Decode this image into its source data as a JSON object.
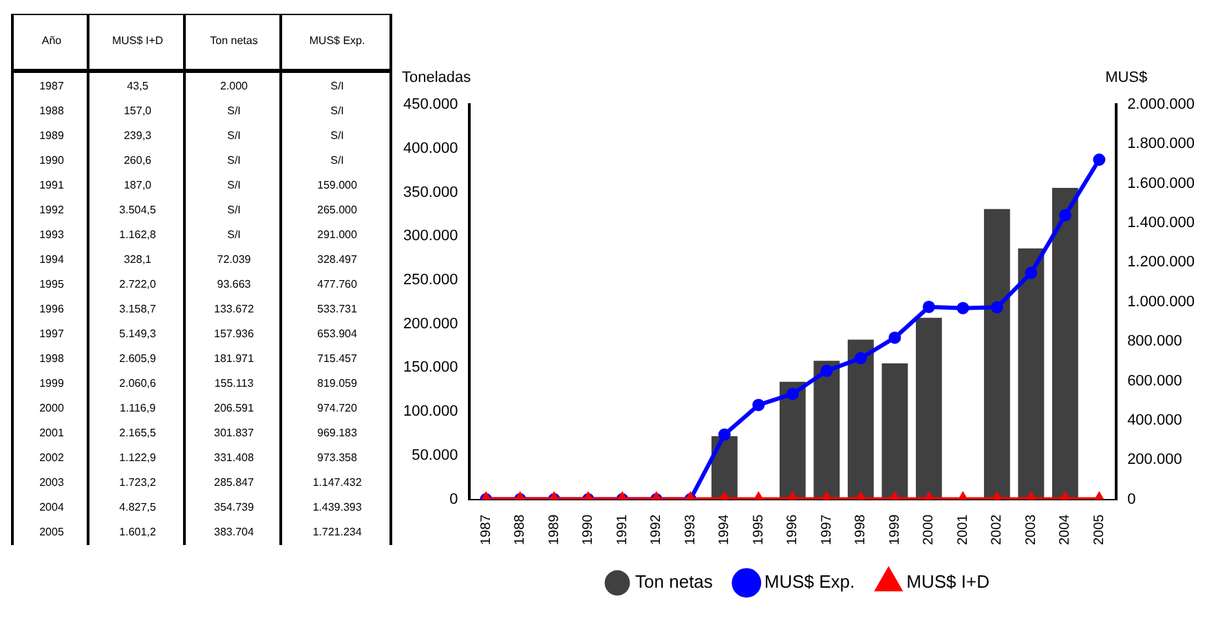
{
  "chart_data": [
    {
      "type": "heatmap",
      "ylabel": "Año",
      "categories": [
        "MUS$ I+D",
        "Ton netas",
        "MUS$ Exp."
      ],
      "y_categories": [
        "1987",
        "1988",
        "1989",
        "1990",
        "1991",
        "1992",
        "1993",
        "1994",
        "1995",
        "1996",
        "1997",
        "1998",
        "1999",
        "2000",
        "2001",
        "2002",
        "2003",
        "2004",
        "2005"
      ],
      "cells": [
        [
          null,
          null,
          null
        ],
        [
          null,
          null,
          null
        ],
        [
          null,
          null,
          null
        ],
        [
          null,
          null,
          null
        ],
        [
          null,
          null,
          null
        ],
        [
          null,
          null,
          null
        ],
        [
          null,
          null,
          null
        ],
        [
          null,
          null,
          null
        ],
        [
          null,
          null,
          null
        ],
        [
          null,
          null,
          null
        ],
        [
          null,
          null,
          null
        ],
        [
          null,
          null,
          null
        ],
        [
          null,
          null,
          null
        ],
        [
          null,
          null,
          null
        ],
        [
          null,
          null,
          null
        ],
        [
          null,
          null,
          null
        ],
        [
          null,
          null,
          null
        ],
        [
          null,
          null,
          null
        ],
        [
          null,
          null,
          null
        ]
      ],
      "cell_labels": [
        [
          "43,5",
          "2.000",
          "S/I"
        ],
        [
          "157,0",
          "S/I",
          "S/I"
        ],
        [
          "239,3",
          "S/I",
          "S/I"
        ],
        [
          "260,6",
          "S/I",
          "S/I"
        ],
        [
          "187,0",
          "S/I",
          "159.000"
        ],
        [
          "3.504,5",
          "S/I",
          "265.000"
        ],
        [
          "1.162,8",
          "S/I",
          "291.000"
        ],
        [
          "328,1",
          "72.039",
          "328.497"
        ],
        [
          "2.722,0",
          "93.663",
          "477.760"
        ],
        [
          "3.158,7",
          "133.672",
          "533.731"
        ],
        [
          "5.149,3",
          "157.936",
          "653.904"
        ],
        [
          "2.605,9",
          "181.971",
          "715.457"
        ],
        [
          "2.060,6",
          "155.113",
          "819.059"
        ],
        [
          "1.116,9",
          "206.591",
          "974.720"
        ],
        [
          "2.165,5",
          "301.837",
          "969.183"
        ],
        [
          "1.122,9",
          "331.408",
          "973.358"
        ],
        [
          "1.723,2",
          "285.847",
          "1.147.432"
        ],
        [
          "4.827,5",
          "354.739",
          "1.439.393"
        ],
        [
          "1.601,2",
          "383.704",
          "1.721.234"
        ]
      ]
    },
    {
      "type": "bar",
      "ylabel": "Toneladas",
      "y2label": "MUS$",
      "categories": [
        "1987",
        "1988",
        "1989",
        "1990",
        "1991",
        "1992",
        "1993",
        "1994",
        "1995",
        "1996",
        "1997",
        "1998",
        "1999",
        "2000",
        "2001",
        "2002",
        "2003",
        "2004",
        "2005"
      ],
      "series": [
        {
          "name": "Ton netas",
          "type": "bar",
          "color": "#404040",
          "values": [
            null,
            null,
            null,
            null,
            null,
            null,
            null,
            72000,
            null,
            134000,
            158000,
            182000,
            155000,
            207000,
            null,
            331000,
            286000,
            355000,
            null
          ]
        },
        {
          "name": "MUS$ Exp.",
          "type": "line",
          "axis": "y2",
          "color": "#0000ff",
          "marker": "circle",
          "values": [
            0,
            0,
            0,
            0,
            0,
            0,
            0,
            328000,
            478000,
            534000,
            651000,
            715000,
            819000,
            975000,
            969000,
            973000,
            1147000,
            1439000,
            1721000
          ]
        },
        {
          "name": "MUS$ I+D",
          "type": "line",
          "axis": "y2",
          "color": "#ff0000",
          "marker": "triangle",
          "values": [
            0,
            0,
            0,
            0,
            0,
            0,
            0,
            0,
            0,
            0,
            0,
            0,
            0,
            0,
            0,
            0,
            0,
            0,
            0
          ]
        }
      ],
      "ylim": [
        0,
        450000
      ],
      "yticks": [
        {
          "value": 0,
          "label": "0"
        },
        {
          "value": 50000,
          "label": "50.000"
        },
        {
          "value": 100000,
          "label": "100.000"
        },
        {
          "value": 150000,
          "label": "150.000"
        },
        {
          "value": 200000,
          "label": "200.000"
        },
        {
          "value": 250000,
          "label": "250.000"
        },
        {
          "value": 300000,
          "label": "300.000"
        },
        {
          "value": 350000,
          "label": "350.000"
        },
        {
          "value": 400000,
          "label": "400.000"
        },
        {
          "value": 450000,
          "label": "450.000"
        }
      ],
      "y2lim": [
        0,
        2000000
      ],
      "y2ticks": [
        {
          "value": 0,
          "label": "0"
        },
        {
          "value": 200000,
          "label": "200.000"
        },
        {
          "value": 400000,
          "label": "400.000"
        },
        {
          "value": 600000,
          "label": "600.000"
        },
        {
          "value": 800000,
          "label": "800.000"
        },
        {
          "value": 1000000,
          "label": "1.000.000"
        },
        {
          "value": 1200000,
          "label": "1.200.000"
        },
        {
          "value": 1400000,
          "label": "1.400.000"
        },
        {
          "value": 1600000,
          "label": "1.600.000"
        },
        {
          "value": 1800000,
          "label": "1.800.000"
        },
        {
          "value": 2000000,
          "label": "2.000.000"
        }
      ],
      "legend": "bottom",
      "grid": false
    }
  ]
}
